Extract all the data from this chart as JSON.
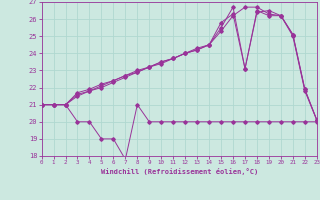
{
  "xlabel": "Windchill (Refroidissement éolien,°C)",
  "bg_color": "#cce8e0",
  "line_color": "#993399",
  "grid_color": "#b0d8d0",
  "xmin": 0,
  "xmax": 23,
  "ymin": 18,
  "ymax": 27,
  "yticks": [
    18,
    19,
    20,
    21,
    22,
    23,
    24,
    25,
    26,
    27
  ],
  "xticks": [
    0,
    1,
    2,
    3,
    4,
    5,
    6,
    7,
    8,
    9,
    10,
    11,
    12,
    13,
    14,
    15,
    16,
    17,
    18,
    19,
    20,
    21,
    22,
    23
  ],
  "line1_x": [
    0,
    1,
    2,
    3,
    4,
    5,
    6,
    7,
    8,
    9,
    10,
    11,
    12,
    13,
    14,
    15,
    16,
    17,
    18,
    19,
    20,
    21,
    22,
    23
  ],
  "line1_y": [
    21,
    21,
    21,
    20,
    20,
    19,
    19,
    17.8,
    21,
    20,
    20,
    20,
    20,
    20,
    20,
    20,
    20,
    20,
    20,
    20,
    20,
    20,
    20,
    20
  ],
  "line2_x": [
    0,
    1,
    2,
    3,
    4,
    5,
    6,
    7,
    8,
    9,
    10,
    11,
    12,
    13,
    14,
    15,
    16,
    17,
    18,
    19,
    20,
    21,
    22,
    23
  ],
  "line2_y": [
    21,
    21,
    21,
    21.7,
    21.9,
    22.2,
    22.4,
    22.7,
    23.0,
    23.2,
    23.5,
    23.7,
    24.0,
    24.3,
    24.5,
    25.8,
    26.3,
    23.1,
    26.5,
    26.2,
    26.2,
    25.0,
    21.8,
    20.1
  ],
  "line3_x": [
    0,
    1,
    2,
    3,
    4,
    5,
    6,
    7,
    8,
    9,
    10,
    11,
    12,
    13,
    14,
    15,
    16,
    17,
    18,
    19,
    20,
    21,
    22,
    23
  ],
  "line3_y": [
    21,
    21,
    21,
    21.5,
    21.8,
    22.0,
    22.3,
    22.6,
    22.9,
    23.2,
    23.5,
    23.7,
    24.0,
    24.2,
    24.5,
    25.5,
    26.7,
    23.1,
    26.4,
    26.5,
    26.2,
    25.1,
    21.9,
    20.1
  ],
  "line4_x": [
    0,
    1,
    2,
    3,
    4,
    5,
    6,
    7,
    8,
    9,
    10,
    11,
    12,
    13,
    14,
    15,
    16,
    17,
    18,
    19,
    20,
    21,
    22,
    23
  ],
  "line4_y": [
    21,
    21,
    21,
    21.6,
    21.8,
    22.1,
    22.4,
    22.7,
    22.9,
    23.2,
    23.4,
    23.7,
    24.0,
    24.2,
    24.5,
    25.3,
    26.2,
    26.7,
    26.7,
    26.3,
    26.2,
    25.1,
    21.9,
    20.1
  ]
}
